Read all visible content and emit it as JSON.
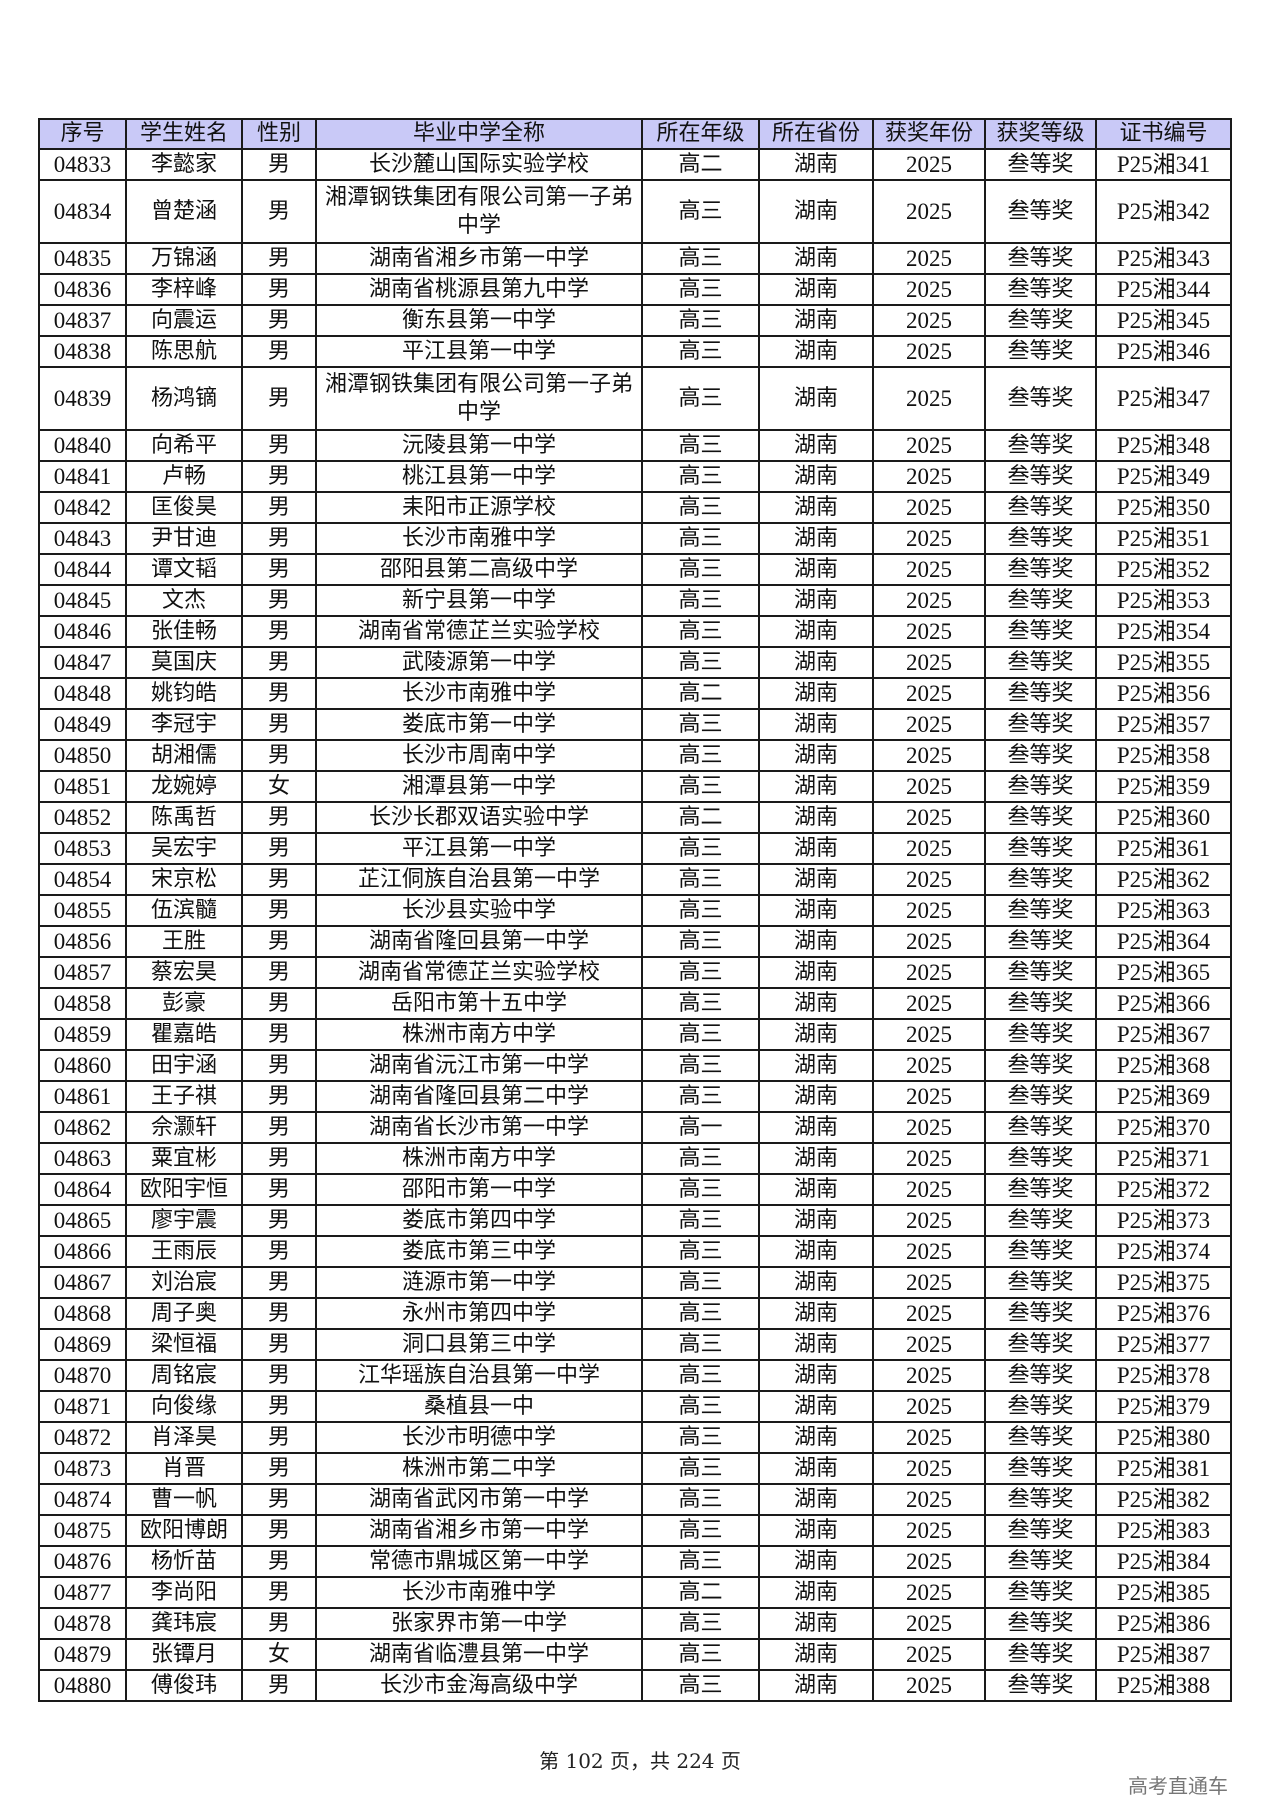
{
  "columns": [
    "序号",
    "学生姓名",
    "性别",
    "毕业中学全称",
    "所在年级",
    "所在省份",
    "获奖年份",
    "获奖等级",
    "证书编号"
  ],
  "rows": [
    [
      "04833",
      "李懿家",
      "男",
      "长沙麓山国际实验学校",
      "高二",
      "湖南",
      "2025",
      "叁等奖",
      "P25湘341"
    ],
    [
      "04834",
      "曾楚涵",
      "男",
      "湘潭钢铁集团有限公司第一子弟中学",
      "高三",
      "湖南",
      "2025",
      "叁等奖",
      "P25湘342"
    ],
    [
      "04835",
      "万锦涵",
      "男",
      "湖南省湘乡市第一中学",
      "高三",
      "湖南",
      "2025",
      "叁等奖",
      "P25湘343"
    ],
    [
      "04836",
      "李梓峰",
      "男",
      "湖南省桃源县第九中学",
      "高三",
      "湖南",
      "2025",
      "叁等奖",
      "P25湘344"
    ],
    [
      "04837",
      "向震运",
      "男",
      "衡东县第一中学",
      "高三",
      "湖南",
      "2025",
      "叁等奖",
      "P25湘345"
    ],
    [
      "04838",
      "陈思航",
      "男",
      "平江县第一中学",
      "高三",
      "湖南",
      "2025",
      "叁等奖",
      "P25湘346"
    ],
    [
      "04839",
      "杨鸿镝",
      "男",
      "湘潭钢铁集团有限公司第一子弟中学",
      "高三",
      "湖南",
      "2025",
      "叁等奖",
      "P25湘347"
    ],
    [
      "04840",
      "向希平",
      "男",
      "沅陵县第一中学",
      "高三",
      "湖南",
      "2025",
      "叁等奖",
      "P25湘348"
    ],
    [
      "04841",
      "卢畅",
      "男",
      "桃江县第一中学",
      "高三",
      "湖南",
      "2025",
      "叁等奖",
      "P25湘349"
    ],
    [
      "04842",
      "匡俊昊",
      "男",
      "耒阳市正源学校",
      "高三",
      "湖南",
      "2025",
      "叁等奖",
      "P25湘350"
    ],
    [
      "04843",
      "尹甘迪",
      "男",
      "长沙市南雅中学",
      "高三",
      "湖南",
      "2025",
      "叁等奖",
      "P25湘351"
    ],
    [
      "04844",
      "谭文韬",
      "男",
      "邵阳县第二高级中学",
      "高三",
      "湖南",
      "2025",
      "叁等奖",
      "P25湘352"
    ],
    [
      "04845",
      "文杰",
      "男",
      "新宁县第一中学",
      "高三",
      "湖南",
      "2025",
      "叁等奖",
      "P25湘353"
    ],
    [
      "04846",
      "张佳畅",
      "男",
      "湖南省常德芷兰实验学校",
      "高三",
      "湖南",
      "2025",
      "叁等奖",
      "P25湘354"
    ],
    [
      "04847",
      "莫国庆",
      "男",
      "武陵源第一中学",
      "高三",
      "湖南",
      "2025",
      "叁等奖",
      "P25湘355"
    ],
    [
      "04848",
      "姚钧皓",
      "男",
      "长沙市南雅中学",
      "高二",
      "湖南",
      "2025",
      "叁等奖",
      "P25湘356"
    ],
    [
      "04849",
      "李冠宇",
      "男",
      "娄底市第一中学",
      "高三",
      "湖南",
      "2025",
      "叁等奖",
      "P25湘357"
    ],
    [
      "04850",
      "胡湘儒",
      "男",
      "长沙市周南中学",
      "高三",
      "湖南",
      "2025",
      "叁等奖",
      "P25湘358"
    ],
    [
      "04851",
      "龙婉婷",
      "女",
      "湘潭县第一中学",
      "高三",
      "湖南",
      "2025",
      "叁等奖",
      "P25湘359"
    ],
    [
      "04852",
      "陈禹哲",
      "男",
      "长沙长郡双语实验中学",
      "高二",
      "湖南",
      "2025",
      "叁等奖",
      "P25湘360"
    ],
    [
      "04853",
      "吴宏宇",
      "男",
      "平江县第一中学",
      "高三",
      "湖南",
      "2025",
      "叁等奖",
      "P25湘361"
    ],
    [
      "04854",
      "宋京松",
      "男",
      "芷江侗族自治县第一中学",
      "高三",
      "湖南",
      "2025",
      "叁等奖",
      "P25湘362"
    ],
    [
      "04855",
      "伍滨髓",
      "男",
      "长沙县实验中学",
      "高三",
      "湖南",
      "2025",
      "叁等奖",
      "P25湘363"
    ],
    [
      "04856",
      "王胜",
      "男",
      "湖南省隆回县第一中学",
      "高三",
      "湖南",
      "2025",
      "叁等奖",
      "P25湘364"
    ],
    [
      "04857",
      "蔡宏昊",
      "男",
      "湖南省常德芷兰实验学校",
      "高三",
      "湖南",
      "2025",
      "叁等奖",
      "P25湘365"
    ],
    [
      "04858",
      "彭豪",
      "男",
      "岳阳市第十五中学",
      "高三",
      "湖南",
      "2025",
      "叁等奖",
      "P25湘366"
    ],
    [
      "04859",
      "瞿嘉皓",
      "男",
      "株洲市南方中学",
      "高三",
      "湖南",
      "2025",
      "叁等奖",
      "P25湘367"
    ],
    [
      "04860",
      "田宇涵",
      "男",
      "湖南省沅江市第一中学",
      "高三",
      "湖南",
      "2025",
      "叁等奖",
      "P25湘368"
    ],
    [
      "04861",
      "王子祺",
      "男",
      "湖南省隆回县第二中学",
      "高三",
      "湖南",
      "2025",
      "叁等奖",
      "P25湘369"
    ],
    [
      "04862",
      "佘灏轩",
      "男",
      "湖南省长沙市第一中学",
      "高一",
      "湖南",
      "2025",
      "叁等奖",
      "P25湘370"
    ],
    [
      "04863",
      "粟宜彬",
      "男",
      "株洲市南方中学",
      "高三",
      "湖南",
      "2025",
      "叁等奖",
      "P25湘371"
    ],
    [
      "04864",
      "欧阳宇恒",
      "男",
      "邵阳市第一中学",
      "高三",
      "湖南",
      "2025",
      "叁等奖",
      "P25湘372"
    ],
    [
      "04865",
      "廖宇震",
      "男",
      "娄底市第四中学",
      "高三",
      "湖南",
      "2025",
      "叁等奖",
      "P25湘373"
    ],
    [
      "04866",
      "王雨辰",
      "男",
      "娄底市第三中学",
      "高三",
      "湖南",
      "2025",
      "叁等奖",
      "P25湘374"
    ],
    [
      "04867",
      "刘治宸",
      "男",
      "涟源市第一中学",
      "高三",
      "湖南",
      "2025",
      "叁等奖",
      "P25湘375"
    ],
    [
      "04868",
      "周子奥",
      "男",
      "永州市第四中学",
      "高三",
      "湖南",
      "2025",
      "叁等奖",
      "P25湘376"
    ],
    [
      "04869",
      "梁恒福",
      "男",
      "洞口县第三中学",
      "高三",
      "湖南",
      "2025",
      "叁等奖",
      "P25湘377"
    ],
    [
      "04870",
      "周铭宸",
      "男",
      "江华瑶族自治县第一中学",
      "高三",
      "湖南",
      "2025",
      "叁等奖",
      "P25湘378"
    ],
    [
      "04871",
      "向俊缘",
      "男",
      "桑植县一中",
      "高三",
      "湖南",
      "2025",
      "叁等奖",
      "P25湘379"
    ],
    [
      "04872",
      "肖泽昊",
      "男",
      "长沙市明德中学",
      "高三",
      "湖南",
      "2025",
      "叁等奖",
      "P25湘380"
    ],
    [
      "04873",
      "肖晋",
      "男",
      "株洲市第二中学",
      "高三",
      "湖南",
      "2025",
      "叁等奖",
      "P25湘381"
    ],
    [
      "04874",
      "曹一帆",
      "男",
      "湖南省武冈市第一中学",
      "高三",
      "湖南",
      "2025",
      "叁等奖",
      "P25湘382"
    ],
    [
      "04875",
      "欧阳博朗",
      "男",
      "湖南省湘乡市第一中学",
      "高三",
      "湖南",
      "2025",
      "叁等奖",
      "P25湘383"
    ],
    [
      "04876",
      "杨忻苗",
      "男",
      "常德市鼎城区第一中学",
      "高三",
      "湖南",
      "2025",
      "叁等奖",
      "P25湘384"
    ],
    [
      "04877",
      "李尚阳",
      "男",
      "长沙市南雅中学",
      "高二",
      "湖南",
      "2025",
      "叁等奖",
      "P25湘385"
    ],
    [
      "04878",
      "龚玮宸",
      "男",
      "张家界市第一中学",
      "高三",
      "湖南",
      "2025",
      "叁等奖",
      "P25湘386"
    ],
    [
      "04879",
      "张镡月",
      "女",
      "湖南省临澧县第一中学",
      "高三",
      "湖南",
      "2025",
      "叁等奖",
      "P25湘387"
    ],
    [
      "04880",
      "傅俊玮",
      "男",
      "长沙市金海高级中学",
      "高三",
      "湖南",
      "2025",
      "叁等奖",
      "P25湘388"
    ]
  ],
  "footer": {
    "page_text": "第 102 页，共 224 页"
  },
  "brand": "高考直通车",
  "colors": {
    "header_bg": "#c9c9f7"
  }
}
